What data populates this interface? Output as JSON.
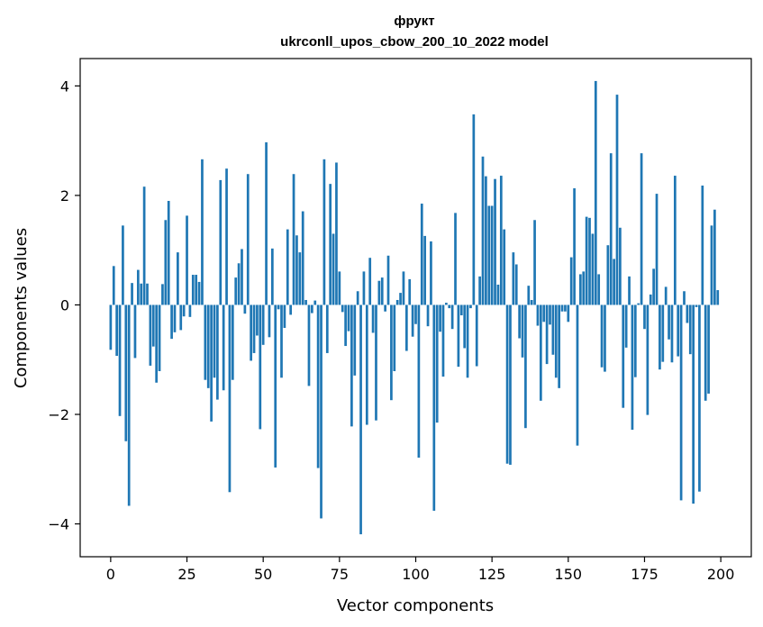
{
  "chart_data": {
    "type": "bar",
    "title_line1": "фрукт",
    "title_line2": "ukrconll_upos_cbow_200_10_2022 model",
    "xlabel": "Vector components",
    "ylabel": "Components values",
    "xlim": [
      -10,
      210
    ],
    "ylim": [
      -4.6,
      4.5
    ],
    "xticks": [
      0,
      25,
      50,
      75,
      100,
      125,
      150,
      175,
      200
    ],
    "yticks": [
      -4,
      -2,
      0,
      2,
      4
    ],
    "ytick_labels": [
      "−4",
      "−2",
      "0",
      "2",
      "4"
    ],
    "bar_color": "#1f77b4",
    "grid": false,
    "x": [
      0,
      1,
      2,
      3,
      4,
      5,
      6,
      7,
      8,
      9,
      10,
      11,
      12,
      13,
      14,
      15,
      16,
      17,
      18,
      19,
      20,
      21,
      22,
      23,
      24,
      25,
      26,
      27,
      28,
      29,
      30,
      31,
      32,
      33,
      34,
      35,
      36,
      37,
      38,
      39,
      40,
      41,
      42,
      43,
      44,
      45,
      46,
      47,
      48,
      49,
      50,
      51,
      52,
      53,
      54,
      55,
      56,
      57,
      58,
      59,
      60,
      61,
      62,
      63,
      64,
      65,
      66,
      67,
      68,
      69,
      70,
      71,
      72,
      73,
      74,
      75,
      76,
      77,
      78,
      79,
      80,
      81,
      82,
      83,
      84,
      85,
      86,
      87,
      88,
      89,
      90,
      91,
      92,
      93,
      94,
      95,
      96,
      97,
      98,
      99,
      100,
      101,
      102,
      103,
      104,
      105,
      106,
      107,
      108,
      109,
      110,
      111,
      112,
      113,
      114,
      115,
      116,
      117,
      118,
      119,
      120,
      121,
      122,
      123,
      124,
      125,
      126,
      127,
      128,
      129,
      130,
      131,
      132,
      133,
      134,
      135,
      136,
      137,
      138,
      139,
      140,
      141,
      142,
      143,
      144,
      145,
      146,
      147,
      148,
      149,
      150,
      151,
      152,
      153,
      154,
      155,
      156,
      157,
      158,
      159,
      160,
      161,
      162,
      163,
      164,
      165,
      166,
      167,
      168,
      169,
      170,
      171,
      172,
      173,
      174,
      175,
      176,
      177,
      178,
      179,
      180,
      181,
      182,
      183,
      184,
      185,
      186,
      187,
      188,
      189,
      190,
      191,
      192,
      193,
      194,
      195,
      196,
      197,
      198,
      199
    ],
    "values": [
      -0.82,
      0.71,
      -0.93,
      -2.03,
      1.45,
      -2.49,
      -3.67,
      0.4,
      -0.97,
      0.64,
      0.39,
      2.16,
      0.39,
      -1.11,
      -0.76,
      -1.42,
      -1.21,
      0.38,
      1.55,
      1.9,
      -0.62,
      -0.5,
      0.96,
      -0.46,
      -0.21,
      1.63,
      -0.22,
      0.55,
      0.55,
      0.42,
      2.66,
      -1.37,
      -1.52,
      -2.13,
      -1.33,
      -1.73,
      2.28,
      -1.56,
      2.49,
      -3.42,
      -1.37,
      0.5,
      0.76,
      1.02,
      -0.16,
      2.39,
      -1.02,
      -0.88,
      -0.56,
      -2.27,
      -0.73,
      2.97,
      -0.59,
      1.03,
      -2.97,
      -0.08,
      -1.33,
      -0.42,
      1.38,
      -0.18,
      2.39,
      1.27,
      0.96,
      1.71,
      0.09,
      -1.48,
      -0.15,
      0.08,
      -2.98,
      -3.9,
      2.66,
      -0.88,
      2.21,
      1.3,
      2.6,
      0.61,
      -0.13,
      -0.75,
      -0.48,
      -2.22,
      -1.29,
      0.25,
      -4.19,
      0.61,
      -2.19,
      0.86,
      -0.51,
      -2.11,
      0.44,
      0.5,
      -0.12,
      0.9,
      -1.74,
      -1.21,
      0.09,
      0.22,
      0.61,
      -0.84,
      0.47,
      -0.58,
      -0.35,
      -2.79,
      1.85,
      1.26,
      -0.39,
      1.16,
      -3.76,
      -2.15,
      -0.49,
      -1.31,
      0.04,
      -0.06,
      -0.44,
      1.68,
      -1.13,
      -0.19,
      -0.79,
      -1.33,
      -0.06,
      3.48,
      -1.12,
      0.52,
      2.71,
      2.35,
      1.81,
      1.81,
      2.3,
      0.37,
      2.36,
      1.38,
      -2.9,
      -2.92,
      0.96,
      0.74,
      -0.61,
      -0.96,
      -2.25,
      0.35,
      0.09,
      1.55,
      -0.38,
      -1.75,
      -0.31,
      -1.08,
      -0.36,
      -0.91,
      -1.33,
      -1.52,
      -0.12,
      -0.12,
      -0.31,
      0.87,
      2.13,
      -2.57,
      0.56,
      0.61,
      1.61,
      1.59,
      1.3,
      4.09,
      0.56,
      -1.14,
      -1.22,
      1.09,
      2.77,
      0.84,
      3.84,
      1.41,
      -1.88,
      -0.78,
      0.52,
      -2.28,
      -1.32,
      0.03,
      2.77,
      -0.44,
      -2.01,
      0.19,
      0.66,
      2.03,
      -1.18,
      -1.04,
      0.33,
      -0.63,
      -1.05,
      2.36,
      -0.94,
      -3.57,
      0.25,
      -0.33,
      -0.9,
      -3.63,
      -0.04,
      -3.41,
      2.18,
      -1.75,
      -1.62,
      1.45,
      1.74,
      0.27
    ]
  }
}
